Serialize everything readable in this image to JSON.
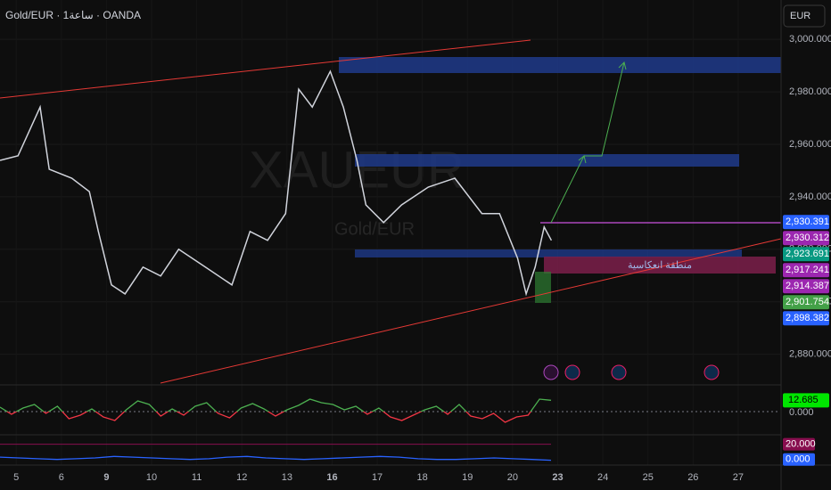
{
  "chart_data": [
    {
      "type": "line",
      "title": "Gold/EUR · 1ساعة · OANDA",
      "currency": "EUR",
      "watermark": "XAUEUR",
      "watermark_subtitle": "Gold/EUR",
      "annotation": "منطقة انعكاسية",
      "color": "#d1d4dc",
      "x": [
        -0.36,
        0.04,
        0.53,
        0.73,
        1.23,
        1.62,
        1.82,
        2.11,
        2.41,
        2.81,
        3.2,
        3.6,
        4.19,
        4.78,
        5.18,
        5.57,
        5.97,
        6.26,
        6.56,
        6.96,
        7.25,
        7.55,
        7.75,
        8.14,
        8.54,
        9.13,
        9.72,
        10.32,
        10.71,
        11.11,
        11.3,
        11.5,
        11.7,
        11.86
      ],
      "values": [
        2953.9,
        2955.6,
        2974.2,
        2950.5,
        2947.1,
        2942,
        2926.8,
        2906.4,
        2903,
        2913.2,
        2909.8,
        2920,
        2913.2,
        2906.4,
        2926.8,
        2923.4,
        2933.6,
        2981,
        2974.2,
        2987.8,
        2974.2,
        2953.9,
        2936.9,
        2930.2,
        2936.9,
        2943.7,
        2947.1,
        2933.6,
        2933.6,
        2916.6,
        2903,
        2913.2,
        2928.5,
        2923.4
      ],
      "xlim": [
        -0.36,
        16.93
      ],
      "xticks": [
        {
          "value": 0,
          "label": "5"
        },
        {
          "value": 1,
          "label": "6"
        },
        {
          "value": 2,
          "label": "9"
        },
        {
          "value": 3,
          "label": "10"
        },
        {
          "value": 4,
          "label": "11"
        },
        {
          "value": 5,
          "label": "12"
        },
        {
          "value": 6,
          "label": "13"
        },
        {
          "value": 7,
          "label": "16"
        },
        {
          "value": 8,
          "label": "17"
        },
        {
          "value": 9,
          "label": "18"
        },
        {
          "value": 10,
          "label": "19"
        },
        {
          "value": 11,
          "label": "20"
        },
        {
          "value": 12,
          "label": "23"
        },
        {
          "value": 13,
          "label": "24"
        },
        {
          "value": 14,
          "label": "25"
        },
        {
          "value": 15,
          "label": "26"
        },
        {
          "value": 16,
          "label": "27"
        }
      ],
      "ylim": [
        2869,
        3015
      ],
      "yticks": [
        {
          "value": 2880,
          "label": "2,880.000"
        },
        {
          "value": 2900,
          "label": "2,900.000"
        },
        {
          "value": 2920,
          "label": "2,920.000"
        },
        {
          "value": 2940,
          "label": "2,940.000"
        },
        {
          "value": 2960,
          "label": "2,960.000"
        },
        {
          "value": 2980,
          "label": "2,980.000"
        },
        {
          "value": 3000,
          "label": "3,000.000"
        }
      ],
      "price_labels": [
        {
          "value": 2930.391,
          "label": "2,930.391",
          "color": "#2962ff"
        },
        {
          "value": 2930.312,
          "label": "2,930.312",
          "color": "#9c27b0"
        },
        {
          "value": 2923.691,
          "label": "2,923.691",
          "color": "#089981"
        },
        {
          "value": 2917.241,
          "label": "2,917.241",
          "color": "#9c27b0"
        },
        {
          "value": 2914.387,
          "label": "2,914.387",
          "color": "#9c27b0"
        },
        {
          "value": 2901.754,
          "label": "2,901.754",
          "color": "#43a047"
        },
        {
          "value": 2898.382,
          "label": "2,898.382",
          "color": "#2962ff"
        }
      ]
    },
    {
      "type": "oscillator",
      "values": [
        5,
        -3,
        4,
        8,
        -2,
        6,
        -8,
        -4,
        3,
        -6,
        -10,
        2,
        12,
        8,
        -5,
        3,
        -4,
        6,
        10,
        -2,
        -7,
        4,
        9,
        3,
        -5,
        2,
        7,
        14,
        10,
        8,
        2,
        6,
        -3,
        4,
        -6,
        -10,
        -4,
        2,
        6,
        -3,
        8,
        -5,
        -8,
        -2,
        -12,
        -6,
        -4,
        14,
        12.685
      ],
      "ylim": [
        -25,
        25
      ],
      "yticks": [
        {
          "value": 0,
          "label": "0.000"
        }
      ],
      "current": 12.685,
      "colors": [
        "#4caf50",
        "#f23645"
      ]
    },
    {
      "type": "line",
      "values": [
        3,
        2,
        1,
        0,
        1,
        2,
        4,
        3,
        2,
        1,
        0,
        1,
        3,
        4,
        2,
        1,
        0,
        1,
        2,
        3,
        4,
        3,
        1,
        0,
        0,
        1,
        2,
        1,
        0,
        -1
      ],
      "color": "#2962ff",
      "ylim": [
        -5,
        30
      ],
      "yticks": [
        {
          "value": 20,
          "label": "20.000",
          "color": "#880e4f"
        },
        {
          "value": 0,
          "label": "0.000",
          "color": "#2962ff"
        }
      ]
    }
  ]
}
